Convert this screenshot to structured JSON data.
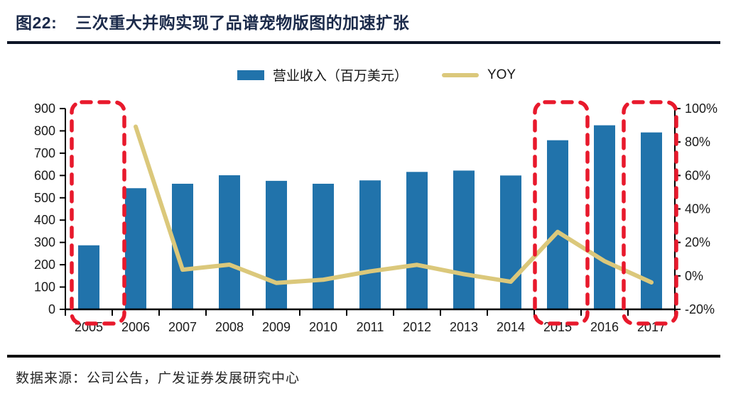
{
  "figure": {
    "label": "图22:",
    "title": "三次重大并购实现了品谱宠物版图的加速扩张",
    "source": "数据来源：公司公告，广发证券发展研究中心"
  },
  "legend": {
    "bar_label": "营业收入（百万美元）",
    "line_label": "YOY"
  },
  "colors": {
    "bar": "#2173ab",
    "line": "#dbc87b",
    "highlight": "#e8192c"
  },
  "chart_data": {
    "type": "bar+line",
    "title": "三次重大并购实现了品谱宠物版图的加速扩张",
    "categories": [
      "2005",
      "2006",
      "2007",
      "2008",
      "2009",
      "2010",
      "2011",
      "2012",
      "2013",
      "2014",
      "2015",
      "2016",
      "2017"
    ],
    "series": [
      {
        "name": "营业收入（百万美元）",
        "type": "bar",
        "axis": "left",
        "values": [
          287,
          543,
          563,
          601,
          576,
          563,
          578,
          616,
          622,
          600,
          758,
          825,
          793
        ]
      },
      {
        "name": "YOY",
        "type": "line",
        "axis": "right",
        "values": [
          null,
          89.2,
          3.7,
          6.7,
          -4.2,
          -2.3,
          2.7,
          6.6,
          1.0,
          -3.5,
          26.3,
          8.8,
          -3.9
        ]
      }
    ],
    "left_axis": {
      "min": 0,
      "max": 900,
      "step": 100,
      "ticks": [
        "0",
        "100",
        "200",
        "300",
        "400",
        "500",
        "600",
        "700",
        "800",
        "900"
      ]
    },
    "right_axis": {
      "min": -20,
      "max": 100,
      "step": 20,
      "ticks": [
        "-20%",
        "0%",
        "20%",
        "40%",
        "60%",
        "80%",
        "100%"
      ]
    },
    "highlighted_categories": [
      "2005",
      "2015",
      "2017"
    ],
    "highlight_style": "red-dashed-rounded-rect",
    "grid": false,
    "legend_position": "top-center"
  }
}
